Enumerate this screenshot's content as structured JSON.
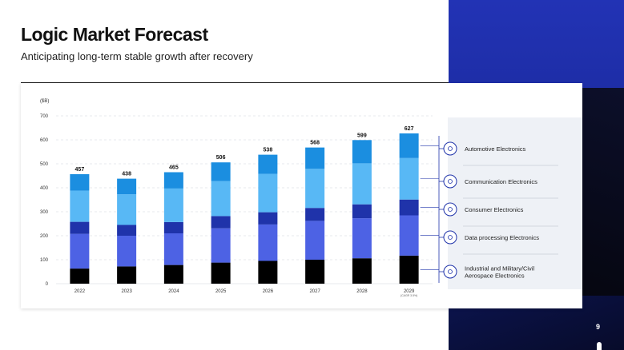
{
  "header": {
    "title": "Logic Market Forecast",
    "subtitle": "Anticipating long-term stable growth after recovery"
  },
  "page_number": "9",
  "colors": {
    "industrial": "#000000",
    "data_processing": "#4d62e4",
    "consumer": "#1f33aa",
    "communication": "#58b8f5",
    "automotive": "#1b8ee0",
    "grid": "#cfd3da",
    "connector": "#1f33aa"
  },
  "legend_icons": [
    "gear-icon",
    "phone-icon",
    "person-icon",
    "layers-icon",
    "satellite-icon"
  ],
  "chart_data": {
    "type": "bar",
    "stacked": true,
    "unit_label": "($B)",
    "categories": [
      "2022",
      "2023",
      "2024",
      "2025",
      "2026",
      "2027",
      "2028",
      "2029"
    ],
    "category_note": "(CAGR 3.5%)",
    "ylim": [
      0,
      700
    ],
    "yticks": [
      "0",
      "100",
      "200",
      "300",
      "400",
      "500",
      "600",
      "700"
    ],
    "grid": true,
    "legend_position": "right",
    "series": [
      {
        "name": "Industrial and Military/Civil Aerospace Electronics",
        "color": "#000000",
        "values": [
          63,
          72,
          78,
          88,
          95,
          100,
          106,
          117
        ]
      },
      {
        "name": "Data processing Electronics",
        "color": "#4d62e4",
        "values": [
          145,
          128,
          132,
          143,
          152,
          162,
          167,
          168
        ]
      },
      {
        "name": "Consumer Electronics",
        "color": "#1f33aa",
        "values": [
          50,
          45,
          47,
          51,
          51,
          54,
          58,
          66
        ]
      },
      {
        "name": "Communication Electronics",
        "color": "#58b8f5",
        "values": [
          130,
          128,
          140,
          146,
          160,
          163,
          171,
          173
        ]
      },
      {
        "name": "Automotive Electronics",
        "color": "#1b8ee0",
        "values": [
          69,
          65,
          68,
          78,
          80,
          89,
          97,
          103
        ]
      }
    ],
    "totals": [
      "457",
      "438",
      "465",
      "506",
      "538",
      "568",
      "599",
      "627"
    ]
  }
}
